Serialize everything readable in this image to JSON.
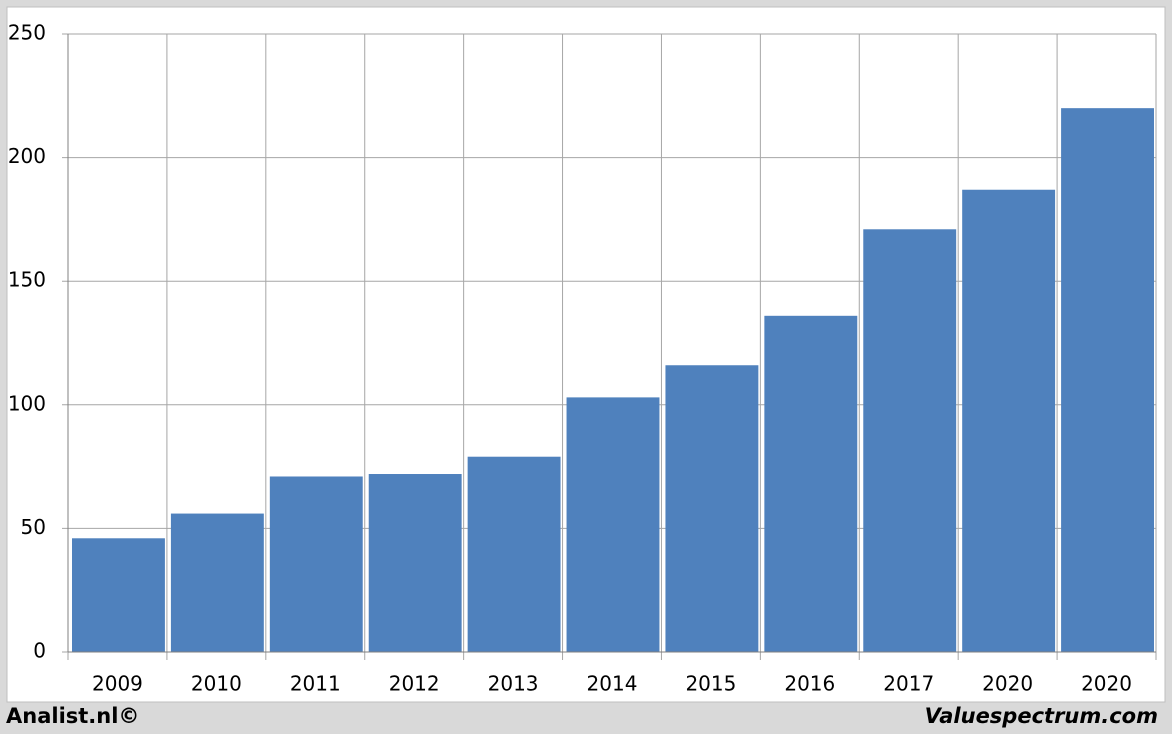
{
  "chart_data": {
    "type": "bar",
    "categories": [
      "2009",
      "2010",
      "2011",
      "2012",
      "2013",
      "2014",
      "2015",
      "2016",
      "2017",
      "2020",
      "2020"
    ],
    "values": [
      46,
      56,
      71,
      72,
      79,
      103,
      116,
      136,
      171,
      187,
      220
    ],
    "color": "#4f81bd",
    "ylim": [
      0,
      250
    ],
    "yticks": [
      0,
      50,
      100,
      150,
      200,
      250
    ],
    "grid": true,
    "source_left": "Analist.nl©",
    "source_right": "Valuespectrum.com"
  }
}
